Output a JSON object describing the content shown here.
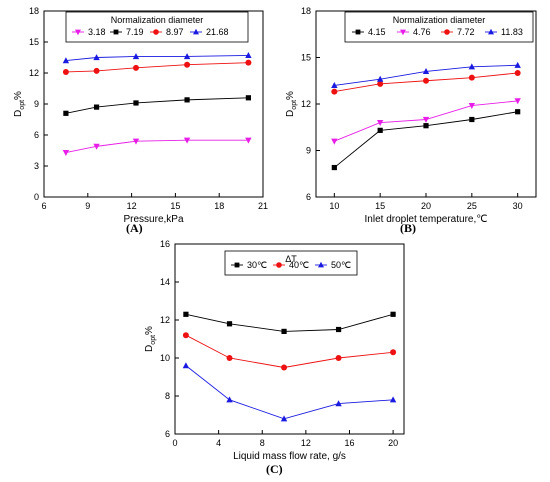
{
  "chart_data": [
    {
      "panel_label": "(A)",
      "type": "line",
      "xlabel": "Pressure,kPa",
      "ylabel": "D",
      "ylabel_sub": "opt",
      "ylabel_unit": "%",
      "xlim": [
        6,
        21
      ],
      "ylim": [
        0,
        18
      ],
      "xticks": [
        6,
        9,
        12,
        15,
        18,
        21
      ],
      "yticks": [
        0,
        3,
        6,
        9,
        12,
        15,
        18
      ],
      "legend": {
        "title": "Normalization diameter",
        "placement": "top"
      },
      "x": [
        7.5,
        9.6,
        12.3,
        15.8,
        20
      ],
      "series": [
        {
          "name": "3.18",
          "marker": "triangle-down",
          "color": "#e81ee8",
          "values": [
            4.3,
            4.9,
            5.4,
            5.5,
            5.5
          ]
        },
        {
          "name": "7.19",
          "marker": "square",
          "color": "#000000",
          "values": [
            8.1,
            8.7,
            9.1,
            9.4,
            9.6
          ]
        },
        {
          "name": "8.97",
          "marker": "circle",
          "color": "#ee1111",
          "values": [
            12.1,
            12.2,
            12.5,
            12.8,
            13.0
          ]
        },
        {
          "name": "21.68",
          "marker": "triangle-up",
          "color": "#1a1ae0",
          "values": [
            13.2,
            13.5,
            13.6,
            13.6,
            13.7
          ]
        }
      ]
    },
    {
      "panel_label": "(B)",
      "type": "line",
      "xlabel": "Inlet droplet temperature,℃",
      "ylabel": "D",
      "ylabel_sub": "opt",
      "ylabel_unit": "%",
      "xlim": [
        8,
        32
      ],
      "ylim": [
        6,
        18
      ],
      "xticks": [
        10,
        15,
        20,
        25,
        30
      ],
      "yticks": [
        6,
        9,
        12,
        15,
        18
      ],
      "legend": {
        "title": "Normalization diameter",
        "placement": "top"
      },
      "x": [
        10,
        15,
        20,
        25,
        30
      ],
      "series": [
        {
          "name": "4.15",
          "marker": "square",
          "color": "#000000",
          "values": [
            7.9,
            10.3,
            10.6,
            11.0,
            11.5
          ]
        },
        {
          "name": "4.76",
          "marker": "triangle-down",
          "color": "#e81ee8",
          "values": [
            9.6,
            10.8,
            11.0,
            11.9,
            12.2
          ]
        },
        {
          "name": "7.72",
          "marker": "circle",
          "color": "#ee1111",
          "values": [
            12.8,
            13.3,
            13.5,
            13.7,
            14.0
          ]
        },
        {
          "name": "11.83",
          "marker": "triangle-up",
          "color": "#1a1ae0",
          "values": [
            13.2,
            13.6,
            14.1,
            14.4,
            14.5
          ]
        }
      ]
    },
    {
      "panel_label": "(C)",
      "type": "line",
      "xlabel": "Liquid mass flow rate, g/s",
      "ylabel": "D",
      "ylabel_sub": "opt",
      "ylabel_unit": "%",
      "xlim": [
        0,
        21
      ],
      "ylim": [
        6,
        16
      ],
      "xticks": [
        0,
        4,
        8,
        12,
        16,
        20
      ],
      "yticks": [
        6,
        8,
        10,
        12,
        14,
        16
      ],
      "legend": {
        "title": "ΔT",
        "placement": "top"
      },
      "x": [
        1,
        5,
        10,
        15,
        20
      ],
      "series": [
        {
          "name": "30℃",
          "marker": "square",
          "color": "#000000",
          "values": [
            12.3,
            11.8,
            11.4,
            11.5,
            12.3
          ]
        },
        {
          "name": "40℃",
          "marker": "circle",
          "color": "#ee1111",
          "values": [
            11.2,
            10.0,
            9.5,
            10.0,
            10.3
          ]
        },
        {
          "name": "50℃",
          "marker": "triangle-up",
          "color": "#1a1ae0",
          "values": [
            9.6,
            7.8,
            6.8,
            7.6,
            7.8
          ]
        }
      ]
    }
  ]
}
